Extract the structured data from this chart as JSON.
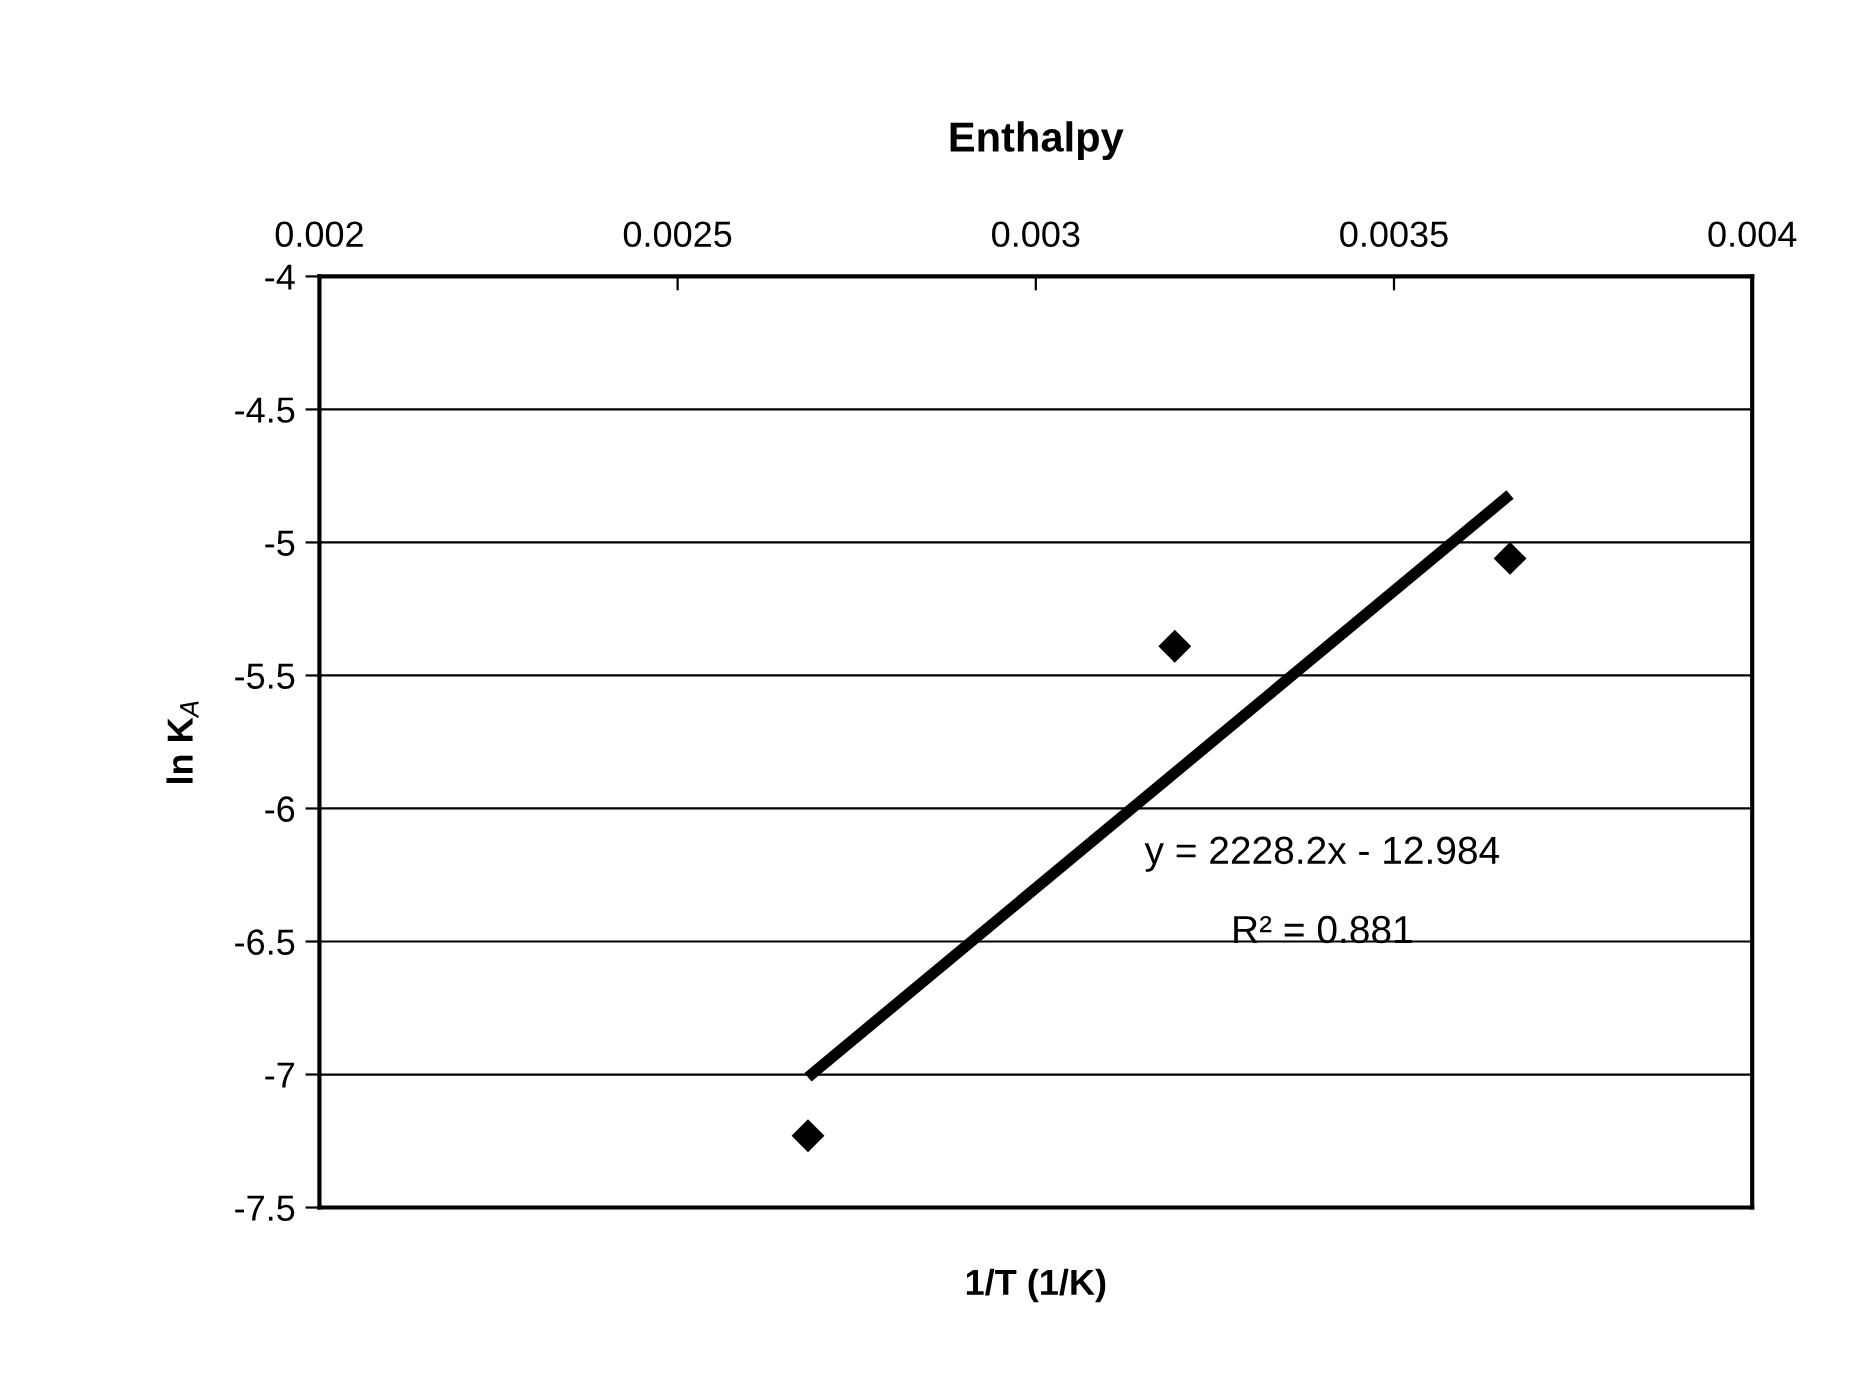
{
  "chart_data": {
    "type": "scatter",
    "title": "Enthalpy",
    "xlabel": "1/T (1/K)",
    "ylabel": "ln K$_{A}$",
    "series": [
      {
        "color": "#000000",
        "x": [
          0.002682,
          0.003194,
          0.003662
        ],
        "values": [
          -7.23,
          -5.39,
          -5.06
        ],
        "marker": "diamond"
      },
      {
        "type": "line",
        "color": "#000000",
        "x": [
          0.002682,
          0.003662
        ],
        "values": [
          -7.01,
          -4.82
        ],
        "marker": "none",
        "line_style": "solid"
      }
    ],
    "xlim": [
      0.002,
      0.004
    ],
    "xticks": [
      0.002,
      0.0025,
      0.003,
      0.0035,
      0.004
    ],
    "ylim": [
      -7.5,
      -4
    ],
    "yticks": [
      -7.5,
      -7,
      -6.5,
      -6,
      -5.5,
      -5,
      -4.5,
      -4
    ],
    "grid": "y",
    "legend": false,
    "annotations": [
      "y = 2228.2x - 12.984",
      "R² = 0.881"
    ]
  }
}
